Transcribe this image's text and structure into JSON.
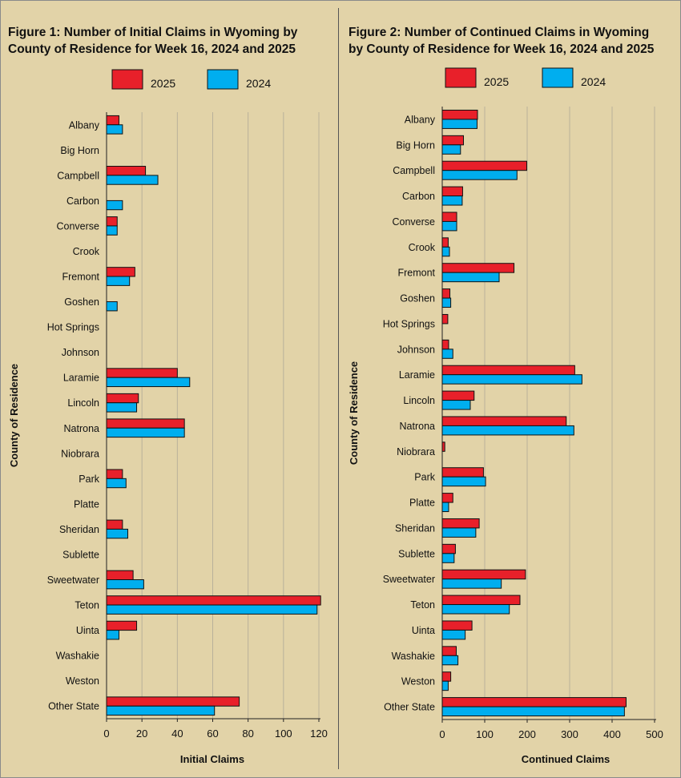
{
  "colors": {
    "series_2025": "#e8202a",
    "series_2024": "#00aeef",
    "gridline": "#b9b19a",
    "background": "#e2d3a8"
  },
  "figure1": {
    "title_line1": "Figure 1: Number of Initial Claims in Wyoming by",
    "title_line2": "County of Residence for Week 16, 2024 and 2025"
  },
  "figure2": {
    "title_line1": "Figure 2: Number of Continued Claims in Wyoming",
    "title_line2": "by County of Residence for Week 16, 2024 and 2025"
  },
  "chart_data": [
    {
      "type": "bar",
      "orientation": "horizontal",
      "title": "Figure 1: Number of Initial Claims in Wyoming by County of Residence for Week 16, 2024 and 2025",
      "xlabel": "Initial Claims",
      "ylabel": "County of Residence",
      "xlim": [
        0,
        120
      ],
      "xticks": [
        0,
        20,
        40,
        60,
        80,
        100,
        120
      ],
      "grid": true,
      "legend": "top",
      "categories": [
        "Albany",
        "Big Horn",
        "Campbell",
        "Carbon",
        "Converse",
        "Crook",
        "Fremont",
        "Goshen",
        "Hot Springs",
        "Johnson",
        "Laramie",
        "Lincoln",
        "Natrona",
        "Niobrara",
        "Park",
        "Platte",
        "Sheridan",
        "Sublette",
        "Sweetwater",
        "Teton",
        "Uinta",
        "Washakie",
        "Weston",
        "Other State"
      ],
      "series": [
        {
          "name": "2025",
          "values": [
            7,
            0,
            22,
            0,
            6,
            0,
            16,
            0,
            0,
            0,
            40,
            18,
            44,
            0,
            9,
            0,
            9,
            0,
            15,
            121,
            17,
            0,
            0,
            75
          ]
        },
        {
          "name": "2024",
          "values": [
            9,
            0,
            29,
            9,
            6,
            0,
            13,
            6,
            0,
            0,
            47,
            17,
            44,
            0,
            11,
            0,
            12,
            0,
            21,
            119,
            7,
            0,
            0,
            61
          ]
        }
      ]
    },
    {
      "type": "bar",
      "orientation": "horizontal",
      "title": "Figure 2: Number of Continued Claims in Wyoming by County of Residence for Week 16, 2024 and 2025",
      "xlabel": "Continued Claims",
      "ylabel": "County of Residence",
      "xlim": [
        0,
        500
      ],
      "xticks": [
        0,
        100,
        200,
        300,
        400,
        500
      ],
      "grid": true,
      "legend": "top",
      "categories": [
        "Albany",
        "Big Horn",
        "Campbell",
        "Carbon",
        "Converse",
        "Crook",
        "Fremont",
        "Goshen",
        "Hot Springs",
        "Johnson",
        "Laramie",
        "Lincoln",
        "Natrona",
        "Niobrara",
        "Park",
        "Platte",
        "Sheridan",
        "Sublette",
        "Sweetwater",
        "Teton",
        "Uinta",
        "Washakie",
        "Weston",
        "Other State"
      ],
      "series": [
        {
          "name": "2025",
          "values": [
            83,
            50,
            199,
            48,
            34,
            14,
            169,
            18,
            13,
            15,
            312,
            75,
            292,
            6,
            97,
            25,
            87,
            31,
            196,
            183,
            70,
            33,
            20,
            433
          ]
        },
        {
          "name": "2024",
          "values": [
            82,
            43,
            176,
            47,
            34,
            17,
            134,
            20,
            0,
            25,
            329,
            66,
            310,
            0,
            102,
            15,
            79,
            28,
            139,
            158,
            54,
            37,
            14,
            429
          ]
        }
      ]
    }
  ]
}
